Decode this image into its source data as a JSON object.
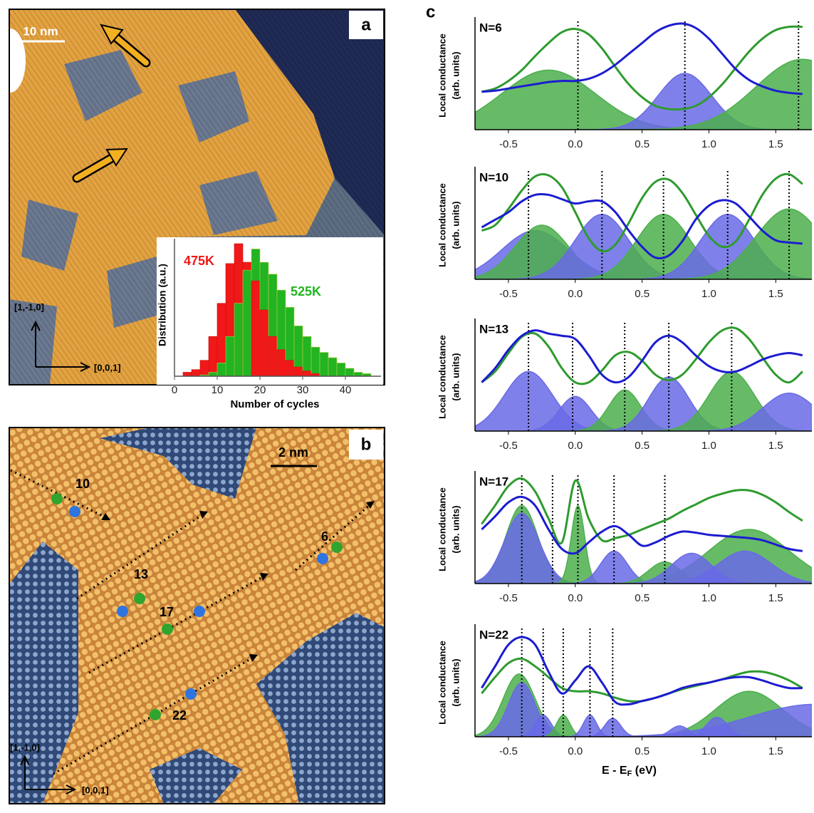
{
  "panel_a": {
    "label": "a",
    "scale_bar": "10 nm",
    "axis_up": "[1,-1,0]",
    "axis_right": "[0,0,1]"
  },
  "panel_b": {
    "label": "b",
    "scale_bar": "2 nm",
    "axis_up": "[1,-1,0]",
    "axis_right": "[0,0,1]",
    "sites": [
      "10",
      "13",
      "6",
      "17",
      "22"
    ]
  },
  "panel_c": {
    "label": "c"
  },
  "chart_data": [
    {
      "type": "histogram",
      "xlabel": "Number of cycles",
      "ylabel": "Distribution (a.u.)",
      "bins": [
        2,
        4,
        6,
        8,
        10,
        12,
        14,
        16,
        18,
        20,
        22,
        24,
        26,
        28,
        30,
        32,
        34,
        36,
        38,
        40,
        42,
        44,
        46
      ],
      "series": [
        {
          "name": "475K",
          "color": "#f01818",
          "values": [
            0.03,
            0.05,
            0.12,
            0.3,
            0.55,
            0.85,
            1.0,
            0.86,
            0.72,
            0.5,
            0.3,
            0.2,
            0.12,
            0.07,
            0.04,
            0.02,
            0,
            0,
            0,
            0,
            0,
            0
          ]
        },
        {
          "name": "525K",
          "color": "#22b422",
          "values": [
            0,
            0,
            0.01,
            0.03,
            0.1,
            0.3,
            0.55,
            0.8,
            0.96,
            0.86,
            0.77,
            0.65,
            0.52,
            0.38,
            0.3,
            0.22,
            0.18,
            0.14,
            0.1,
            0.06,
            0.03,
            0.02
          ]
        }
      ],
      "xlim": [
        0,
        47
      ],
      "ylim": [
        0,
        1.05
      ],
      "xticks": [
        0,
        10,
        20,
        30,
        40
      ]
    },
    {
      "type": "line",
      "label": "N=6",
      "ylabel": [
        "Local conductance",
        "(arb. units)"
      ],
      "x": [
        -0.7,
        -0.6,
        -0.5,
        -0.4,
        -0.3,
        -0.2,
        -0.1,
        0,
        0.1,
        0.2,
        0.3,
        0.4,
        0.5,
        0.6,
        0.7,
        0.8,
        0.9,
        1.0,
        1.1,
        1.2,
        1.3,
        1.4,
        1.5,
        1.6,
        1.7
      ],
      "series": [
        {
          "color": "#2e9b2e",
          "values": [
            0.35,
            0.38,
            0.45,
            0.55,
            0.68,
            0.8,
            0.9,
            0.93,
            0.88,
            0.75,
            0.58,
            0.42,
            0.3,
            0.22,
            0.19,
            0.19,
            0.22,
            0.3,
            0.42,
            0.57,
            0.72,
            0.84,
            0.92,
            0.95,
            0.95
          ]
        },
        {
          "color": "#1c1cd0",
          "values": [
            0.35,
            0.36,
            0.38,
            0.4,
            0.42,
            0.44,
            0.45,
            0.45,
            0.47,
            0.52,
            0.6,
            0.7,
            0.8,
            0.9,
            0.96,
            0.98,
            0.94,
            0.84,
            0.7,
            0.56,
            0.46,
            0.4,
            0.36,
            0.34,
            0.33
          ]
        }
      ],
      "peaks": [
        {
          "center": -0.2,
          "height": 0.55,
          "width": 0.35,
          "color": "#4caf4c"
        },
        {
          "center": 0.82,
          "height": 0.52,
          "width": 0.2,
          "color": "#6a6ae6"
        },
        {
          "center": 1.7,
          "height": 0.65,
          "width": 0.35,
          "color": "#4caf4c"
        }
      ],
      "markers": [
        0.02,
        0.82,
        1.67
      ],
      "xlim": [
        -0.75,
        1.77
      ],
      "ylim": [
        0,
        1
      ],
      "xticks": [
        -0.5,
        {
          "value": 0,
          "label": "0.0"
        },
        0.5,
        {
          "value": 1,
          "label": "1.0"
        },
        1.5
      ]
    },
    {
      "type": "line",
      "label": "N=10",
      "ylabel": [
        "Local conductance",
        "(arb. units)"
      ],
      "x": [
        -0.7,
        -0.6,
        -0.5,
        -0.4,
        -0.3,
        -0.2,
        -0.1,
        0,
        0.1,
        0.2,
        0.3,
        0.4,
        0.5,
        0.6,
        0.7,
        0.8,
        0.9,
        1.0,
        1.1,
        1.2,
        1.3,
        1.4,
        1.5,
        1.6,
        1.7
      ],
      "series": [
        {
          "color": "#2e9b2e",
          "values": [
            0.45,
            0.5,
            0.65,
            0.82,
            0.95,
            0.96,
            0.85,
            0.62,
            0.38,
            0.26,
            0.32,
            0.52,
            0.75,
            0.9,
            0.92,
            0.8,
            0.6,
            0.4,
            0.3,
            0.35,
            0.55,
            0.78,
            0.93,
            0.97,
            0.88
          ]
        },
        {
          "color": "#1c1cd0",
          "values": [
            0.48,
            0.55,
            0.62,
            0.72,
            0.78,
            0.78,
            0.74,
            0.7,
            0.72,
            0.72,
            0.62,
            0.45,
            0.3,
            0.2,
            0.22,
            0.35,
            0.55,
            0.68,
            0.73,
            0.7,
            0.58,
            0.45,
            0.36,
            0.34,
            0.33
          ]
        }
      ],
      "peaks": [
        {
          "center": -0.3,
          "height": 0.45,
          "width": 0.25,
          "color": "#6a6ae6"
        },
        {
          "center": -0.25,
          "height": 0.5,
          "width": 0.2,
          "color": "#4caf4c"
        },
        {
          "center": 0.2,
          "height": 0.6,
          "width": 0.2,
          "color": "#6a6ae6"
        },
        {
          "center": 0.66,
          "height": 0.6,
          "width": 0.2,
          "color": "#4caf4c"
        },
        {
          "center": 1.14,
          "height": 0.6,
          "width": 0.2,
          "color": "#6a6ae6"
        },
        {
          "center": 1.6,
          "height": 0.65,
          "width": 0.25,
          "color": "#4caf4c"
        }
      ],
      "markers": [
        -0.35,
        0.2,
        0.66,
        1.14,
        1.6
      ],
      "xlim": [
        -0.75,
        1.77
      ],
      "ylim": [
        0,
        1
      ],
      "xticks": [
        -0.5,
        {
          "value": 0,
          "label": "0.0"
        },
        0.5,
        {
          "value": 1,
          "label": "1.0"
        },
        1.5
      ]
    },
    {
      "type": "line",
      "label": "N=13",
      "ylabel": [
        "Local conductance",
        "(arb. units)"
      ],
      "x": [
        -0.7,
        -0.6,
        -0.5,
        -0.4,
        -0.3,
        -0.2,
        -0.1,
        0,
        0.1,
        0.2,
        0.3,
        0.4,
        0.5,
        0.6,
        0.7,
        0.8,
        0.9,
        1.0,
        1.1,
        1.2,
        1.3,
        1.4,
        1.5,
        1.6,
        1.7
      ],
      "series": [
        {
          "color": "#2e9b2e",
          "values": [
            0.45,
            0.55,
            0.72,
            0.87,
            0.9,
            0.78,
            0.58,
            0.45,
            0.45,
            0.56,
            0.7,
            0.73,
            0.65,
            0.52,
            0.47,
            0.52,
            0.66,
            0.82,
            0.93,
            0.95,
            0.85,
            0.68,
            0.52,
            0.45,
            0.55
          ]
        },
        {
          "color": "#1c1cd0",
          "values": [
            0.45,
            0.58,
            0.75,
            0.88,
            0.93,
            0.9,
            0.88,
            0.85,
            0.7,
            0.52,
            0.45,
            0.5,
            0.65,
            0.82,
            0.88,
            0.82,
            0.7,
            0.6,
            0.55,
            0.55,
            0.6,
            0.66,
            0.7,
            0.72,
            0.7
          ]
        }
      ],
      "peaks": [
        {
          "center": -0.35,
          "height": 0.55,
          "width": 0.18,
          "color": "#6a6ae6"
        },
        {
          "center": 0.0,
          "height": 0.32,
          "width": 0.12,
          "color": "#6a6ae6"
        },
        {
          "center": 0.37,
          "height": 0.38,
          "width": 0.12,
          "color": "#4caf4c"
        },
        {
          "center": 0.7,
          "height": 0.5,
          "width": 0.15,
          "color": "#6a6ae6"
        },
        {
          "center": 1.17,
          "height": 0.55,
          "width": 0.17,
          "color": "#4caf4c"
        },
        {
          "center": 1.6,
          "height": 0.35,
          "width": 0.2,
          "color": "#6a6ae6"
        }
      ],
      "markers": [
        -0.35,
        -0.02,
        0.37,
        0.7,
        1.17
      ],
      "xlim": [
        -0.75,
        1.77
      ],
      "ylim": [
        0,
        1
      ],
      "xticks": [
        -0.5,
        {
          "value": 0,
          "label": "0.0"
        },
        0.5,
        {
          "value": 1,
          "label": "1.0"
        },
        1.5
      ]
    },
    {
      "type": "line",
      "label": "N=17",
      "ylabel": [
        "Local conductance",
        "(arb. units)"
      ],
      "x": [
        -0.7,
        -0.6,
        -0.5,
        -0.4,
        -0.3,
        -0.2,
        -0.1,
        0,
        0.1,
        0.2,
        0.3,
        0.4,
        0.5,
        0.6,
        0.7,
        0.8,
        0.9,
        1.0,
        1.1,
        1.2,
        1.3,
        1.4,
        1.5,
        1.6,
        1.7
      ],
      "series": [
        {
          "color": "#2e9b2e",
          "values": [
            0.55,
            0.72,
            0.9,
            0.97,
            0.85,
            0.6,
            0.38,
            0.95,
            0.6,
            0.4,
            0.42,
            0.45,
            0.5,
            0.55,
            0.6,
            0.67,
            0.73,
            0.79,
            0.83,
            0.86,
            0.86,
            0.82,
            0.75,
            0.66,
            0.58
          ]
        },
        {
          "color": "#1c1cd0",
          "values": [
            0.5,
            0.62,
            0.75,
            0.8,
            0.72,
            0.5,
            0.32,
            0.28,
            0.38,
            0.48,
            0.53,
            0.45,
            0.35,
            0.38,
            0.44,
            0.48,
            0.47,
            0.45,
            0.44,
            0.43,
            0.42,
            0.4,
            0.36,
            0.32,
            0.3
          ]
        }
      ],
      "peaks": [
        {
          "center": -0.4,
          "height": 0.72,
          "width": 0.12,
          "color": "#4caf4c"
        },
        {
          "center": -0.4,
          "height": 0.65,
          "width": 0.13,
          "color": "#6a6ae6"
        },
        {
          "center": 0.02,
          "height": 0.72,
          "width": 0.05,
          "color": "#4caf4c"
        },
        {
          "center": 0.29,
          "height": 0.3,
          "width": 0.1,
          "color": "#6a6ae6"
        },
        {
          "center": 0.67,
          "height": 0.2,
          "width": 0.12,
          "color": "#4caf4c"
        },
        {
          "center": 1.3,
          "height": 0.5,
          "width": 0.3,
          "color": "#4caf4c"
        },
        {
          "center": 0.87,
          "height": 0.28,
          "width": 0.15,
          "color": "#6a6ae6"
        },
        {
          "center": 1.27,
          "height": 0.3,
          "width": 0.2,
          "color": "#6a6ae6"
        }
      ],
      "markers": [
        -0.4,
        -0.17,
        0.02,
        0.29,
        0.67
      ],
      "xlim": [
        -0.75,
        1.77
      ],
      "ylim": [
        0,
        1
      ],
      "xticks": [
        -0.5,
        {
          "value": 0,
          "label": "0.0"
        },
        0.5,
        {
          "value": 1,
          "label": "1.0"
        },
        1.5
      ]
    },
    {
      "type": "line",
      "label": "N=22",
      "ylabel": [
        "Local conductance",
        "(arb. units)"
      ],
      "xlabel": [
        "E - E",
        "F",
        " (eV)"
      ],
      "x": [
        -0.7,
        -0.6,
        -0.5,
        -0.4,
        -0.3,
        -0.2,
        -0.1,
        0,
        0.1,
        0.2,
        0.3,
        0.4,
        0.5,
        0.6,
        0.7,
        0.8,
        0.9,
        1.0,
        1.1,
        1.2,
        1.3,
        1.4,
        1.5,
        1.6,
        1.7
      ],
      "series": [
        {
          "color": "#2e9b2e",
          "values": [
            0.4,
            0.55,
            0.68,
            0.72,
            0.65,
            0.55,
            0.45,
            0.42,
            0.42,
            0.4,
            0.36,
            0.33,
            0.33,
            0.36,
            0.4,
            0.44,
            0.47,
            0.5,
            0.53,
            0.57,
            0.6,
            0.6,
            0.57,
            0.52,
            0.45
          ]
        },
        {
          "color": "#1c1cd0",
          "values": [
            0.45,
            0.65,
            0.85,
            0.92,
            0.85,
            0.6,
            0.4,
            0.52,
            0.65,
            0.5,
            0.32,
            0.3,
            0.33,
            0.36,
            0.4,
            0.45,
            0.48,
            0.5,
            0.53,
            0.55,
            0.55,
            0.52,
            0.48,
            0.45,
            0.45
          ]
        }
      ],
      "peaks": [
        {
          "center": -0.42,
          "height": 0.58,
          "width": 0.12,
          "color": "#4caf4c"
        },
        {
          "center": -0.4,
          "height": 0.5,
          "width": 0.1,
          "color": "#6a6ae6"
        },
        {
          "center": -0.24,
          "height": 0.2,
          "width": 0.06,
          "color": "#6a6ae6"
        },
        {
          "center": -0.09,
          "height": 0.2,
          "width": 0.05,
          "color": "#4caf4c"
        },
        {
          "center": 0.11,
          "height": 0.2,
          "width": 0.05,
          "color": "#6a6ae6"
        },
        {
          "center": 0.28,
          "height": 0.17,
          "width": 0.06,
          "color": "#6a6ae6"
        },
        {
          "center": 1.3,
          "height": 0.42,
          "width": 0.25,
          "color": "#4caf4c"
        },
        {
          "center": 0.78,
          "height": 0.1,
          "width": 0.07,
          "color": "#6a6ae6"
        },
        {
          "center": 1.06,
          "height": 0.18,
          "width": 0.08,
          "color": "#6a6ae6"
        },
        {
          "center": 1.8,
          "height": 0.3,
          "width": 0.5,
          "color": "#6a6ae6"
        }
      ],
      "markers": [
        -0.4,
        -0.24,
        -0.09,
        0.11,
        0.28
      ],
      "xlim": [
        -0.75,
        1.77
      ],
      "ylim": [
        0,
        1
      ],
      "xticks": [
        -0.5,
        {
          "value": 0,
          "label": "0.0"
        },
        0.5,
        {
          "value": 1,
          "label": "1.0"
        },
        1.5
      ]
    }
  ]
}
